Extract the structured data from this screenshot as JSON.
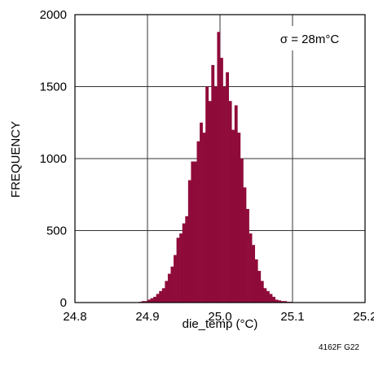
{
  "colors": {
    "bar": "#8f0b3a",
    "grid": "#333333",
    "frame": "#000000"
  },
  "figure_id": "4162F G22",
  "chart_data": {
    "type": "bar",
    "title": "",
    "xlabel": "die_temp (°C)",
    "ylabel": "FREQUENCY",
    "xlim": [
      24.8,
      25.2
    ],
    "ylim": [
      0,
      2000
    ],
    "x_ticks": [
      24.8,
      24.9,
      25.0,
      25.1,
      25.2
    ],
    "x_tick_labels": [
      "24.8",
      "24.9",
      "25.0",
      "25.1",
      "25.2"
    ],
    "y_ticks": [
      0,
      500,
      1000,
      1500,
      2000
    ],
    "y_tick_labels": [
      "0",
      "500",
      "1000",
      "1500",
      "2000"
    ],
    "grid": true,
    "annotation": "σ = 28m°C",
    "bin_width": 0.004,
    "bin_centers": [
      24.89,
      24.894,
      24.898,
      24.902,
      24.906,
      24.91,
      24.914,
      24.918,
      24.922,
      24.926,
      24.93,
      24.934,
      24.938,
      24.942,
      24.946,
      24.95,
      24.954,
      24.958,
      24.962,
      24.966,
      24.97,
      24.974,
      24.978,
      24.982,
      24.986,
      24.99,
      24.994,
      24.998,
      25.002,
      25.006,
      25.01,
      25.014,
      25.018,
      25.022,
      25.026,
      25.03,
      25.034,
      25.038,
      25.042,
      25.046,
      25.05,
      25.054,
      25.058,
      25.062,
      25.066,
      25.07,
      25.074,
      25.078,
      25.082,
      25.086,
      25.09,
      25.094,
      25.098
    ],
    "values": [
      5,
      10,
      10,
      20,
      30,
      40,
      60,
      80,
      100,
      150,
      200,
      250,
      330,
      450,
      480,
      550,
      600,
      850,
      980,
      980,
      1120,
      1250,
      1180,
      1500,
      1400,
      1650,
      1500,
      1880,
      1700,
      1500,
      1600,
      1400,
      1200,
      1370,
      1180,
      1000,
      800,
      650,
      480,
      400,
      300,
      220,
      150,
      100,
      80,
      60,
      40,
      20,
      15,
      10,
      10,
      5,
      5
    ]
  }
}
